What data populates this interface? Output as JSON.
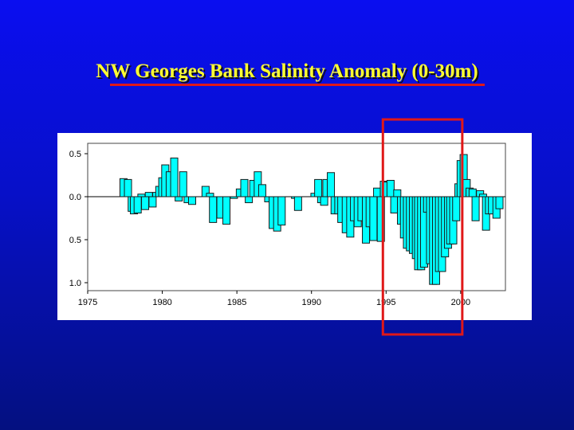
{
  "slide": {
    "title": "NW Georges Bank Salinity Anomaly (0-30m)"
  },
  "colors": {
    "background": "#0a0ef0",
    "title": "#ffff33",
    "underline": "#e01818",
    "bar_fill": "#00ffff",
    "bar_stroke": "#1a1a1a",
    "highlight_box": "#e01818"
  },
  "chart_data": {
    "type": "bar",
    "title": "",
    "xlabel": "",
    "ylabel": "",
    "xlim": [
      1975,
      2003
    ],
    "ylim": [
      -1.1,
      0.6
    ],
    "x_ticks": [
      {
        "value": 1975,
        "label": "1975"
      },
      {
        "value": 1980,
        "label": "1980"
      },
      {
        "value": 1985,
        "label": "1985"
      },
      {
        "value": 1990,
        "label": "1990"
      },
      {
        "value": 1995,
        "label": "1995"
      },
      {
        "value": 2000,
        "label": "2000"
      }
    ],
    "y_ticks": [
      {
        "value": 0.5,
        "label": "0.5"
      },
      {
        "value": 0.0,
        "label": "0.0"
      },
      {
        "value": -0.5,
        "label": "0.5"
      },
      {
        "value": -1.0,
        "label": "1.0"
      }
    ],
    "grid": false,
    "highlight_x_range": [
      1995.0,
      2000.0
    ],
    "series": [
      {
        "values": [
          [
            1977.4,
            0.21
          ],
          [
            1977.7,
            0.2
          ],
          [
            1977.95,
            -0.17
          ],
          [
            1978.1,
            -0.2
          ],
          [
            1978.35,
            -0.19
          ],
          [
            1978.6,
            0.03
          ],
          [
            1978.85,
            -0.15
          ],
          [
            1979.1,
            0.05
          ],
          [
            1979.35,
            -0.12
          ],
          [
            1979.6,
            0.05
          ],
          [
            1979.8,
            0.12
          ],
          [
            1980.0,
            0.22
          ],
          [
            1980.2,
            0.37
          ],
          [
            1980.5,
            0.29
          ],
          [
            1980.8,
            0.45
          ],
          [
            1981.1,
            -0.05
          ],
          [
            1981.4,
            0.29
          ],
          [
            1981.7,
            -0.07
          ],
          [
            1982.0,
            -0.09
          ],
          [
            1982.9,
            0.12
          ],
          [
            1983.2,
            0.04
          ],
          [
            1983.4,
            -0.3
          ],
          [
            1983.9,
            -0.25
          ],
          [
            1984.3,
            -0.32
          ],
          [
            1984.8,
            -0.02
          ],
          [
            1985.2,
            0.09
          ],
          [
            1985.5,
            0.2
          ],
          [
            1985.8,
            -0.07
          ],
          [
            1986.1,
            0.19
          ],
          [
            1986.4,
            0.29
          ],
          [
            1986.7,
            0.14
          ],
          [
            1987.1,
            -0.06
          ],
          [
            1987.4,
            -0.37
          ],
          [
            1987.7,
            -0.4
          ],
          [
            1988.0,
            -0.33
          ],
          [
            1988.9,
            -0.02
          ],
          [
            1989.1,
            -0.16
          ],
          [
            1990.2,
            0.04
          ],
          [
            1990.45,
            0.2
          ],
          [
            1990.65,
            -0.07
          ],
          [
            1990.85,
            -0.1
          ],
          [
            1991.0,
            0.2
          ],
          [
            1991.3,
            0.28
          ],
          [
            1991.55,
            -0.2
          ],
          [
            1991.8,
            -0.2
          ],
          [
            1992.0,
            -0.3
          ],
          [
            1992.3,
            -0.42
          ],
          [
            1992.6,
            -0.47
          ],
          [
            1992.85,
            -0.28
          ],
          [
            1993.1,
            -0.35
          ],
          [
            1993.35,
            -0.28
          ],
          [
            1993.65,
            -0.54
          ],
          [
            1993.9,
            -0.35
          ],
          [
            1994.15,
            -0.51
          ],
          [
            1994.4,
            0.1
          ],
          [
            1994.65,
            -0.52
          ],
          [
            1994.85,
            0.18
          ],
          [
            1995.05,
            0.17
          ],
          [
            1995.3,
            0.19
          ],
          [
            1995.55,
            -0.19
          ],
          [
            1995.75,
            0.08
          ],
          [
            1996.0,
            -0.32
          ],
          [
            1996.2,
            -0.48
          ],
          [
            1996.4,
            -0.6
          ],
          [
            1996.6,
            -0.63
          ],
          [
            1996.8,
            -0.66
          ],
          [
            1997.0,
            -0.72
          ],
          [
            1997.15,
            -0.85
          ],
          [
            1997.35,
            -0.85
          ],
          [
            1997.55,
            -0.82
          ],
          [
            1997.75,
            -0.18
          ],
          [
            1997.95,
            -0.78
          ],
          [
            1998.15,
            -1.02
          ],
          [
            1998.35,
            -1.02
          ],
          [
            1998.55,
            -0.87
          ],
          [
            1998.75,
            -0.87
          ],
          [
            1998.95,
            -0.7
          ],
          [
            1999.15,
            -0.6
          ],
          [
            1999.3,
            -0.55
          ],
          [
            1999.5,
            -0.55
          ],
          [
            1999.7,
            -0.28
          ],
          [
            1999.85,
            0.15
          ],
          [
            2000.0,
            0.42
          ],
          [
            2000.2,
            0.49
          ],
          [
            2000.4,
            0.2
          ],
          [
            2000.6,
            0.1
          ],
          [
            2000.8,
            0.09
          ],
          [
            2001.0,
            -0.28
          ],
          [
            2001.3,
            0.07
          ],
          [
            2001.5,
            0.03
          ],
          [
            2001.7,
            -0.39
          ],
          [
            2001.9,
            -0.2
          ],
          [
            2002.1,
            -0.2
          ],
          [
            2002.4,
            -0.25
          ],
          [
            2002.6,
            -0.14
          ]
        ]
      }
    ]
  }
}
